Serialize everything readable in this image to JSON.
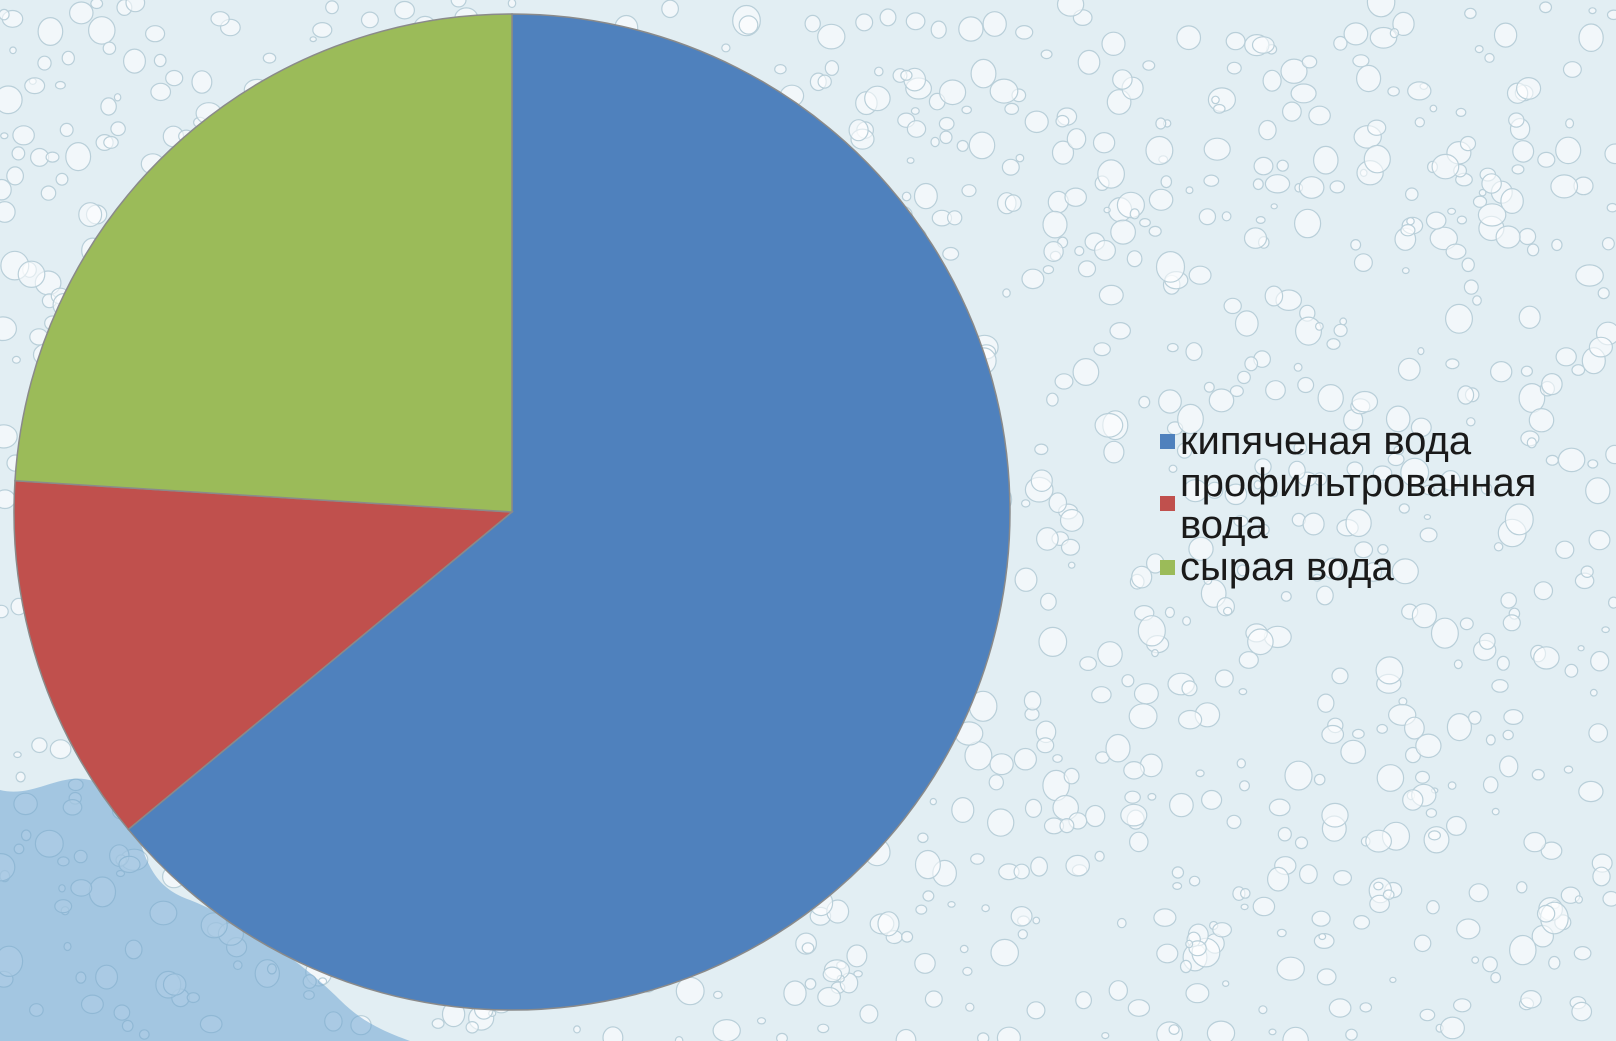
{
  "chart_data": {
    "type": "pie",
    "title": "",
    "start_angle_deg": 0,
    "direction": "clockwise",
    "slices": [
      {
        "label": "кипяченая вода",
        "value": 64,
        "color": "#4f81bd"
      },
      {
        "label": "профильтрованная вода",
        "value": 12,
        "color": "#c0504d"
      },
      {
        "label": "сырая вода",
        "value": 24,
        "color": "#9bbb59"
      }
    ],
    "legend": {
      "placement": "right",
      "items": [
        "кипяченая вода",
        "профильтрованная вода",
        "сырая вода"
      ]
    }
  },
  "background": {
    "description_color": "#e2eef3",
    "drop_color": "#ffffff",
    "splash_color": "#6fa6d2"
  }
}
